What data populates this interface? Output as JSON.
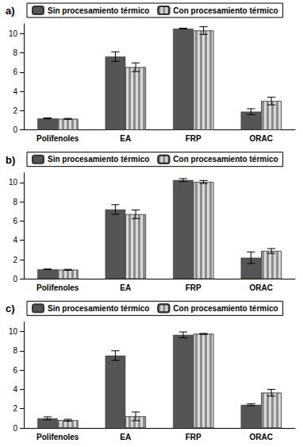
{
  "chart_data": [
    {
      "type": "bar",
      "title": "a)",
      "categories": [
        "Polifenoles",
        "EA",
        "FRP",
        "ORAC"
      ],
      "series": [
        {
          "name": "Sin procesamiento térmico",
          "color": "#555555",
          "values": [
            1.2,
            7.6,
            10.5,
            1.9
          ],
          "errors": [
            0.05,
            0.5,
            0.05,
            0.3
          ]
        },
        {
          "name": "Con procesamiento térmico",
          "color": "#d9d9d9",
          "values": [
            1.15,
            6.5,
            10.3,
            3.0
          ],
          "errors": [
            0.05,
            0.45,
            0.4,
            0.4
          ]
        }
      ],
      "ylim": [
        0,
        11
      ],
      "yticks": [
        0,
        2,
        4,
        6,
        8,
        10
      ],
      "grid": false,
      "legend": "top"
    },
    {
      "type": "bar",
      "title": "b)",
      "categories": [
        "Polifenoles",
        "EA",
        "FRP",
        "ORAC"
      ],
      "series": [
        {
          "name": "Sin procesamiento térmico",
          "color": "#555555",
          "values": [
            1.0,
            7.2,
            10.25,
            2.2
          ],
          "errors": [
            0.03,
            0.5,
            0.15,
            0.6
          ]
        },
        {
          "name": "Con procesamiento térmico",
          "color": "#d9d9d9",
          "values": [
            0.95,
            6.7,
            10.05,
            2.9
          ],
          "errors": [
            0.05,
            0.45,
            0.15,
            0.25
          ]
        }
      ],
      "ylim": [
        0,
        11
      ],
      "yticks": [
        0,
        2,
        4,
        6,
        8,
        10
      ],
      "grid": false,
      "legend": "top"
    },
    {
      "type": "bar",
      "title": "c)",
      "categories": [
        "Polifenoles",
        "EA",
        "FRP",
        "ORAC"
      ],
      "series": [
        {
          "name": "Sin procesamiento térmico",
          "color": "#555555",
          "values": [
            1.0,
            7.5,
            9.65,
            2.4
          ],
          "errors": [
            0.15,
            0.5,
            0.3,
            0.1
          ]
        },
        {
          "name": "Con procesamiento térmico",
          "color": "#d9d9d9",
          "values": [
            0.8,
            1.2,
            9.75,
            3.65
          ],
          "errors": [
            0.1,
            0.45,
            0.05,
            0.35
          ]
        }
      ],
      "ylim": [
        0,
        11
      ],
      "yticks": [
        0,
        2,
        4,
        6,
        8,
        10
      ],
      "grid": false,
      "legend": "top"
    }
  ]
}
